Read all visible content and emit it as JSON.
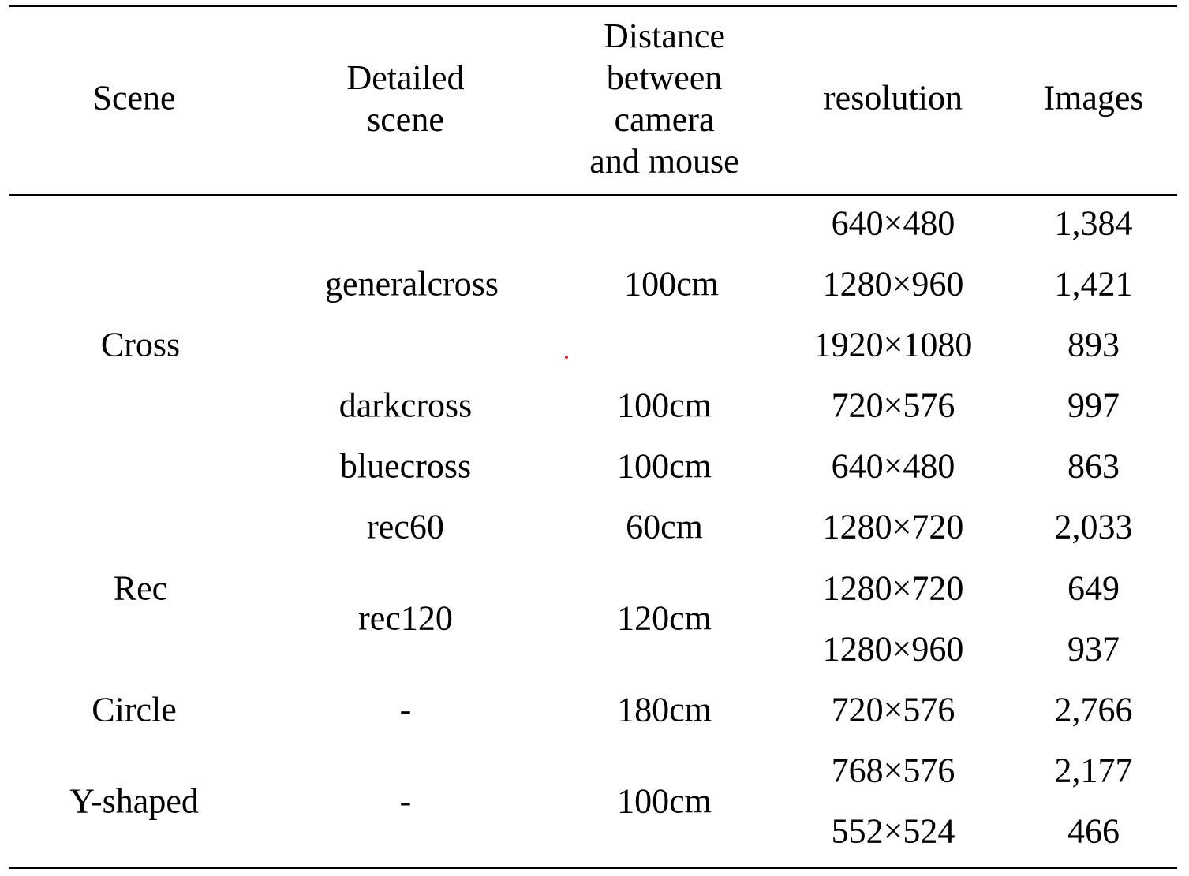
{
  "table": {
    "headers": {
      "scene": "Scene",
      "detailed_scene": [
        "Detailed",
        "scene"
      ],
      "distance": [
        "Distance",
        "between",
        "camera",
        "and mouse"
      ],
      "resolution": "resolution",
      "images": "Images"
    },
    "scene_groups": [
      {
        "label": "Cross"
      },
      {
        "label": "Rec"
      },
      {
        "label": "Circle"
      },
      {
        "label": "Y-shaped"
      }
    ],
    "detailed_groups": [
      {
        "label": "generalcross",
        "distance": "100cm"
      },
      {
        "label": "darkcross",
        "distance": "100cm"
      },
      {
        "label": "bluecross",
        "distance": "100cm"
      },
      {
        "label": "rec60",
        "distance": "60cm"
      },
      {
        "label": "rec120",
        "distance": "120cm"
      },
      {
        "label": "-",
        "distance": "180cm"
      },
      {
        "label": "-",
        "distance": "100cm"
      }
    ],
    "rows": [
      {
        "resolution": "640×480",
        "images": "1,384"
      },
      {
        "resolution": "1280×960",
        "images": "1,421"
      },
      {
        "resolution": "1920×1080",
        "images": "893"
      },
      {
        "resolution": "720×576",
        "images": "997"
      },
      {
        "resolution": "640×480",
        "images": "863"
      },
      {
        "resolution": "1280×720",
        "images": "2,033"
      },
      {
        "resolution": "1280×720",
        "images": "649"
      },
      {
        "resolution": "1280×960",
        "images": "937"
      },
      {
        "resolution": "720×576",
        "images": "2,766"
      },
      {
        "resolution": "768×576",
        "images": "2,177"
      },
      {
        "resolution": "552×524",
        "images": "466"
      }
    ]
  },
  "colors": {
    "text": "#000000",
    "rules": "#000000",
    "stray_dot": "#e0202a"
  }
}
